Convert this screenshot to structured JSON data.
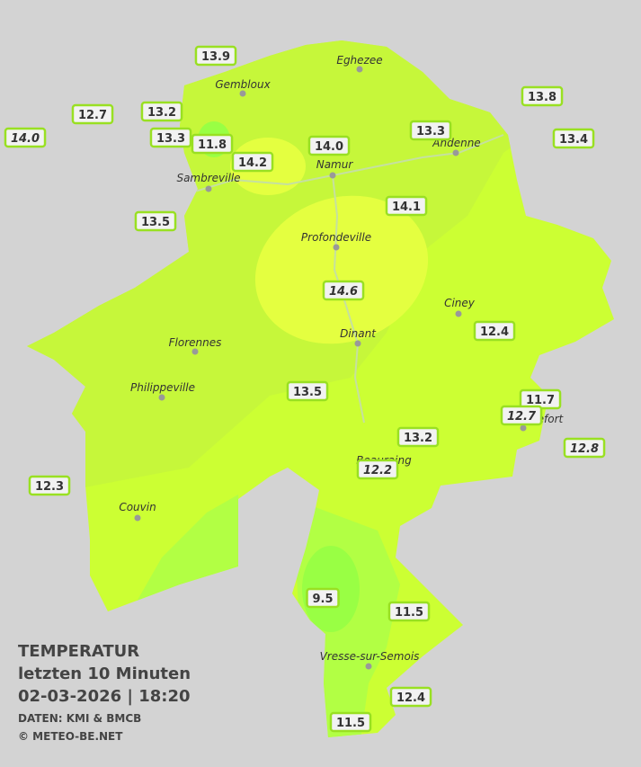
{
  "title": {
    "lines": [
      "TEMPERATUR",
      "letzten 10 Minuten",
      "02-03-2026 | 18:20"
    ],
    "source": "DATEN: KMI & BMCB",
    "credit": "© METEO-BE.NET"
  },
  "cities": [
    "Eghezee",
    "Gembloux",
    "Andenne",
    "Namur",
    "Sambreville",
    "Profondeville",
    "Ciney",
    "Dinant",
    "Florennes",
    "Philippeville",
    "Rochefort",
    "Beauraing",
    "Couvin",
    "Vresse-sur-Semois"
  ],
  "stations": [
    {
      "label": "13.9",
      "italic": false
    },
    {
      "label": "12.7",
      "italic": false
    },
    {
      "label": "14.0",
      "italic": true
    },
    {
      "label": "13.2",
      "italic": false
    },
    {
      "label": "13.3",
      "italic": false
    },
    {
      "label": "11.8",
      "italic": false
    },
    {
      "label": "14.2",
      "italic": false
    },
    {
      "label": "14.0",
      "italic": false
    },
    {
      "label": "13.3",
      "italic": false
    },
    {
      "label": "13.8",
      "italic": false
    },
    {
      "label": "13.4",
      "italic": false
    },
    {
      "label": "13.5",
      "italic": false
    },
    {
      "label": "14.1",
      "italic": false
    },
    {
      "label": "14.6",
      "italic": true
    },
    {
      "label": "12.4",
      "italic": false
    },
    {
      "label": "13.5",
      "italic": false
    },
    {
      "label": "11.7",
      "italic": false
    },
    {
      "label": "12.7",
      "italic": true
    },
    {
      "label": "12.8",
      "italic": true
    },
    {
      "label": "13.2",
      "italic": false
    },
    {
      "label": "12.2",
      "italic": true
    },
    {
      "label": "12.3",
      "italic": false
    },
    {
      "label": "9.5",
      "italic": false
    },
    {
      "label": "11.5",
      "italic": false
    },
    {
      "label": "12.4",
      "italic": false
    },
    {
      "label": "11.5",
      "italic": false
    }
  ]
}
